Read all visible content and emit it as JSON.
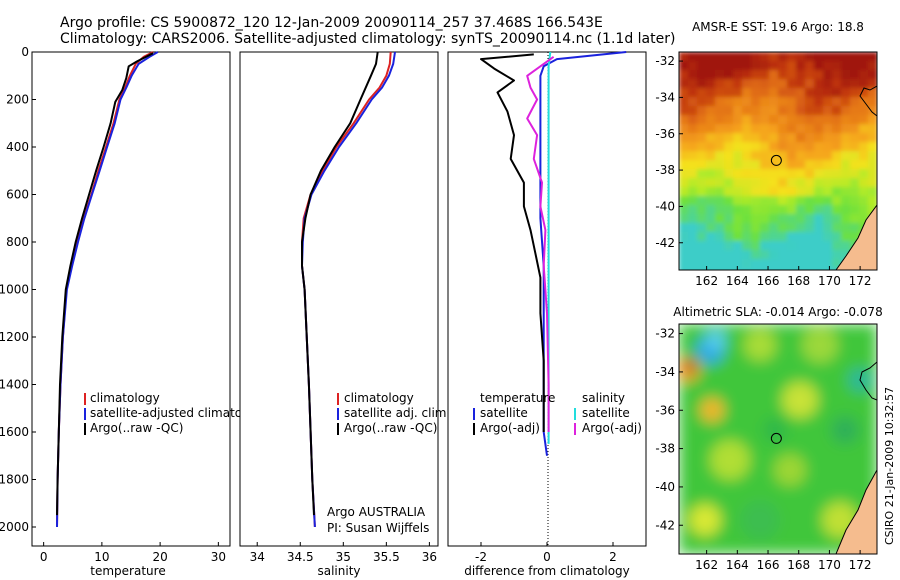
{
  "header": {
    "title_line1": "Argo profile: CS 5900872_120 12-Jan-2009 20090114_257 37.468S 166.543E",
    "title_line2": "Climatology: CARS2006. Satellite-adjusted climatology: synTS_20090114.nc (1.1d later)"
  },
  "colors": {
    "climatology": "#dd2222",
    "satellite": "#1a22dd",
    "argo": "#000000",
    "salinity_satellite": "#22dddd",
    "salinity_argo": "#dd22dd"
  },
  "chart_data": [
    {
      "type": "line",
      "xlabel": "temperature",
      "ylabel": "",
      "xlim": [
        -2,
        32
      ],
      "ylim": [
        2080,
        0
      ],
      "xticks": [
        0,
        10,
        20,
        30
      ],
      "yticks": [
        0,
        200,
        400,
        600,
        800,
        1000,
        1200,
        1400,
        1600,
        1800,
        2000
      ],
      "legend": [
        "climatology",
        "satellite-adjusted climatology",
        "Argo(..raw -QC)"
      ],
      "series": [
        {
          "name": "climatology",
          "color": "#dd2222",
          "x": [
            18.8,
            17.2,
            15.8,
            14.8,
            14.0,
            13.0,
            12.0,
            10.7,
            9.4,
            8.2,
            6.9,
            5.8,
            4.8,
            3.9,
            3.3,
            2.9,
            2.6,
            2.4,
            2.3
          ],
          "y": [
            0,
            20,
            50,
            100,
            150,
            200,
            300,
            400,
            500,
            600,
            700,
            800,
            900,
            1000,
            1200,
            1400,
            1600,
            1800,
            2000
          ]
        },
        {
          "name": "satellite-adjusted climatology",
          "color": "#1a22dd",
          "x": [
            19.6,
            18.2,
            16.3,
            15.1,
            14.2,
            13.2,
            12.2,
            10.9,
            9.6,
            8.3,
            7.0,
            5.9,
            4.9,
            4.0,
            3.3,
            2.9,
            2.6,
            2.4,
            2.3
          ],
          "y": [
            0,
            20,
            50,
            100,
            150,
            200,
            300,
            400,
            500,
            600,
            700,
            800,
            900,
            1000,
            1200,
            1400,
            1600,
            1800,
            2000
          ]
        },
        {
          "name": "Argo(..raw -QC)",
          "color": "#000000",
          "x": [
            18.8,
            16.0,
            14.6,
            14.2,
            13.5,
            12.3,
            11.5,
            10.3,
            9.0,
            7.8,
            6.6,
            5.5,
            4.6,
            3.8,
            3.2,
            2.8,
            2.6,
            2.4,
            2.3
          ],
          "y": [
            5,
            40,
            60,
            110,
            160,
            210,
            300,
            400,
            500,
            600,
            700,
            800,
            900,
            1000,
            1200,
            1400,
            1600,
            1800,
            1950
          ]
        }
      ]
    },
    {
      "type": "line",
      "xlabel": "salinity",
      "ylabel": "",
      "xlim": [
        33.8,
        36.1
      ],
      "ylim": [
        2080,
        0
      ],
      "xticks": [
        34,
        34.5,
        35,
        35.5,
        36
      ],
      "legend": [
        "climatology",
        "satellite adj. clim.",
        "Argo(..raw -QC)"
      ],
      "annotation": [
        "Argo AUSTRALIA",
        "PI: Susan Wijffels"
      ],
      "series": [
        {
          "name": "climatology",
          "color": "#dd2222",
          "x": [
            35.55,
            35.54,
            35.5,
            35.42,
            35.3,
            35.12,
            34.92,
            34.76,
            34.62,
            34.54,
            34.52,
            34.52,
            34.55,
            34.6,
            34.64,
            34.67
          ],
          "y": [
            0,
            50,
            100,
            150,
            200,
            300,
            400,
            500,
            600,
            700,
            800,
            900,
            1000,
            1400,
            1800,
            2000
          ]
        },
        {
          "name": "satellite adj. clim.",
          "color": "#1a22dd",
          "x": [
            35.6,
            35.58,
            35.53,
            35.45,
            35.33,
            35.15,
            34.95,
            34.78,
            34.63,
            34.55,
            34.53,
            34.52,
            34.55,
            34.6,
            34.64,
            34.67
          ],
          "y": [
            0,
            50,
            100,
            150,
            200,
            300,
            400,
            500,
            600,
            700,
            800,
            900,
            1000,
            1400,
            1800,
            2000
          ]
        },
        {
          "name": "Argo(..raw -QC)",
          "color": "#000000",
          "x": [
            35.4,
            35.38,
            35.32,
            35.2,
            35.08,
            34.9,
            34.74,
            34.62,
            34.56,
            34.52,
            34.52,
            34.55,
            34.6,
            34.64,
            34.66
          ],
          "y": [
            0,
            50,
            100,
            200,
            300,
            400,
            500,
            600,
            700,
            800,
            900,
            1000,
            1400,
            1800,
            1950
          ]
        }
      ]
    },
    {
      "type": "line",
      "xlabel": "difference from climatology",
      "ylabel": "",
      "xlim": [
        -3,
        3
      ],
      "ylim": [
        2080,
        0
      ],
      "xticks": [
        -2,
        0,
        2
      ],
      "legend_left_title": "temperature",
      "legend_right_title": "salinity",
      "legend": [
        "satellite",
        "Argo(-adj)",
        "satellite",
        "Argo(-adj)"
      ],
      "series": [
        {
          "name": "temperature satellite",
          "color": "#1a22dd",
          "x": [
            2.4,
            0.3,
            -0.1,
            -0.2,
            -0.2,
            -0.2,
            -0.2,
            -0.2,
            -0.1,
            -0.1,
            -0.1,
            -0.1,
            -0.1,
            0.0
          ],
          "y": [
            0,
            30,
            60,
            100,
            200,
            300,
            500,
            700,
            900,
            1000,
            1200,
            1400,
            1600,
            1700
          ]
        },
        {
          "name": "temperature Argo(-adj)",
          "color": "#000000",
          "x": [
            -0.4,
            -2.0,
            -1.6,
            -1.0,
            -1.5,
            -1.2,
            -1.0,
            -1.1,
            -0.7,
            -0.7,
            -0.5,
            -0.35,
            -0.2,
            -0.2,
            -0.1,
            -0.1,
            -0.1
          ],
          "y": [
            10,
            30,
            70,
            120,
            170,
            250,
            350,
            450,
            550,
            650,
            750,
            850,
            950,
            1100,
            1300,
            1500,
            1600
          ]
        },
        {
          "name": "salinity satellite",
          "color": "#22dddd",
          "x": [
            0.1,
            0.05,
            0.05,
            0.05,
            0.05,
            0.05,
            0.05,
            0.05
          ],
          "y": [
            0,
            60,
            200,
            500,
            800,
            1100,
            1400,
            1650
          ]
        },
        {
          "name": "salinity Argo(-adj)",
          "color": "#dd22dd",
          "x": [
            0.2,
            -0.6,
            -0.5,
            -0.3,
            -0.6,
            -0.3,
            -0.4,
            -0.15,
            -0.2,
            -0.05,
            -0.1,
            0.0,
            0.05,
            0.05
          ],
          "y": [
            20,
            100,
            150,
            200,
            280,
            350,
            450,
            550,
            650,
            750,
            900,
            1100,
            1400,
            1600
          ]
        }
      ]
    },
    {
      "type": "heatmap",
      "title": "AMSR-E SST: 19.6 Argo: 18.8",
      "xlim": [
        160.2,
        173.1
      ],
      "ylim": [
        -43.5,
        -31.5
      ],
      "xticks": [
        162,
        164,
        166,
        168,
        170,
        172
      ],
      "yticks": [
        -32,
        -34,
        -36,
        -38,
        -40,
        -42
      ],
      "marker": {
        "lon": 166.543,
        "lat": -37.468
      }
    },
    {
      "type": "heatmap",
      "title": "Altimetric SLA: -0.014 Argo: -0.078",
      "xlim": [
        160.2,
        173.1
      ],
      "ylim": [
        -43.5,
        -31.5
      ],
      "xticks": [
        162,
        164,
        166,
        168,
        170,
        172
      ],
      "yticks": [
        -32,
        -34,
        -36,
        -38,
        -40,
        -42
      ],
      "marker": {
        "lon": 166.543,
        "lat": -37.468
      }
    }
  ],
  "side_label": "CSIRO 21-Jan-2009 10:32:57"
}
